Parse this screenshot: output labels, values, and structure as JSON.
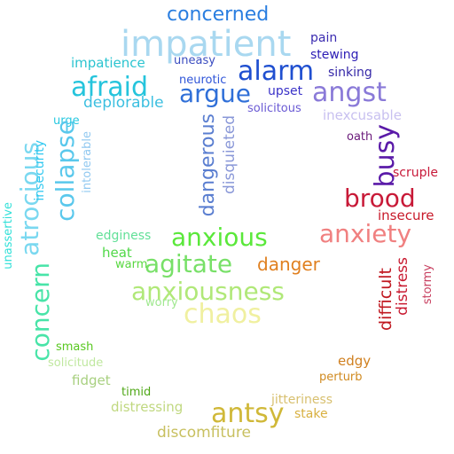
{
  "words": [
    {
      "text": "concerned",
      "color": "#2a7ee0"
    },
    {
      "text": "impatient",
      "color": "#a9d8f0"
    },
    {
      "text": "pain",
      "color": "#3a2bb0"
    },
    {
      "text": "stewing",
      "color": "#2c1db5"
    },
    {
      "text": "impatience",
      "color": "#2bc4d0"
    },
    {
      "text": "uneasy",
      "color": "#3a4cc0"
    },
    {
      "text": "alarm",
      "color": "#1f4fd0"
    },
    {
      "text": "sinking",
      "color": "#3528a8"
    },
    {
      "text": "afraid",
      "color": "#25c4dc"
    },
    {
      "text": "neurotic",
      "color": "#2f55d8"
    },
    {
      "text": "argue",
      "color": "#2f6fd8"
    },
    {
      "text": "upset",
      "color": "#3a32c8"
    },
    {
      "text": "angst",
      "color": "#8a7ad8"
    },
    {
      "text": "deplorable",
      "color": "#3bbfe0"
    },
    {
      "text": "solicitous",
      "color": "#6a5ad4"
    },
    {
      "text": "inexcusable",
      "color": "#c8c0f0"
    },
    {
      "text": "urge",
      "color": "#28c8e0"
    },
    {
      "text": "collapse",
      "color": "#5ac8ec"
    },
    {
      "text": "atrocious",
      "color": "#7ad8f0"
    },
    {
      "text": "insecurity",
      "color": "#30c8f0"
    },
    {
      "text": "intolerable",
      "color": "#90c8f0"
    },
    {
      "text": "dangerous",
      "color": "#5a7ed0"
    },
    {
      "text": "disquieted",
      "color": "#8a98d8"
    },
    {
      "text": "busy",
      "color": "#5a1aa8"
    },
    {
      "text": "oath",
      "color": "#6a1a7a"
    },
    {
      "text": "scruple",
      "color": "#c81a3a"
    },
    {
      "text": "concern",
      "color": "#48e4a8"
    },
    {
      "text": "unassertive",
      "color": "#30e0d8"
    },
    {
      "text": "brood",
      "color": "#c81a38"
    },
    {
      "text": "insecure",
      "color": "#c81a2a"
    },
    {
      "text": "edginess",
      "color": "#62e098"
    },
    {
      "text": "anxious",
      "color": "#5ae83a"
    },
    {
      "text": "anxiety",
      "color": "#f08080"
    },
    {
      "text": "heat",
      "color": "#50d848"
    },
    {
      "text": "agitate",
      "color": "#78e068"
    },
    {
      "text": "danger",
      "color": "#e08020"
    },
    {
      "text": "warm",
      "color": "#58d840"
    },
    {
      "text": "difficult",
      "color": "#c01820"
    },
    {
      "text": "distress",
      "color": "#c81a30"
    },
    {
      "text": "stormy",
      "color": "#c84060"
    },
    {
      "text": "anxiousness",
      "color": "#b0e878"
    },
    {
      "text": "worry",
      "color": "#a0e890"
    },
    {
      "text": "chaos",
      "color": "#f0f0a0"
    },
    {
      "text": "smash",
      "color": "#58c820"
    },
    {
      "text": "solicitude",
      "color": "#c0e8a0"
    },
    {
      "text": "edgy",
      "color": "#d08020"
    },
    {
      "text": "fidget",
      "color": "#a8d080"
    },
    {
      "text": "perturb",
      "color": "#d08a20"
    },
    {
      "text": "timid",
      "color": "#50a818"
    },
    {
      "text": "jitteriness",
      "color": "#d8c070"
    },
    {
      "text": "distressing",
      "color": "#c0d880"
    },
    {
      "text": "antsy",
      "color": "#d0b838"
    },
    {
      "text": "stake",
      "color": "#d8b040"
    },
    {
      "text": "discomfiture",
      "color": "#c8c060"
    }
  ]
}
